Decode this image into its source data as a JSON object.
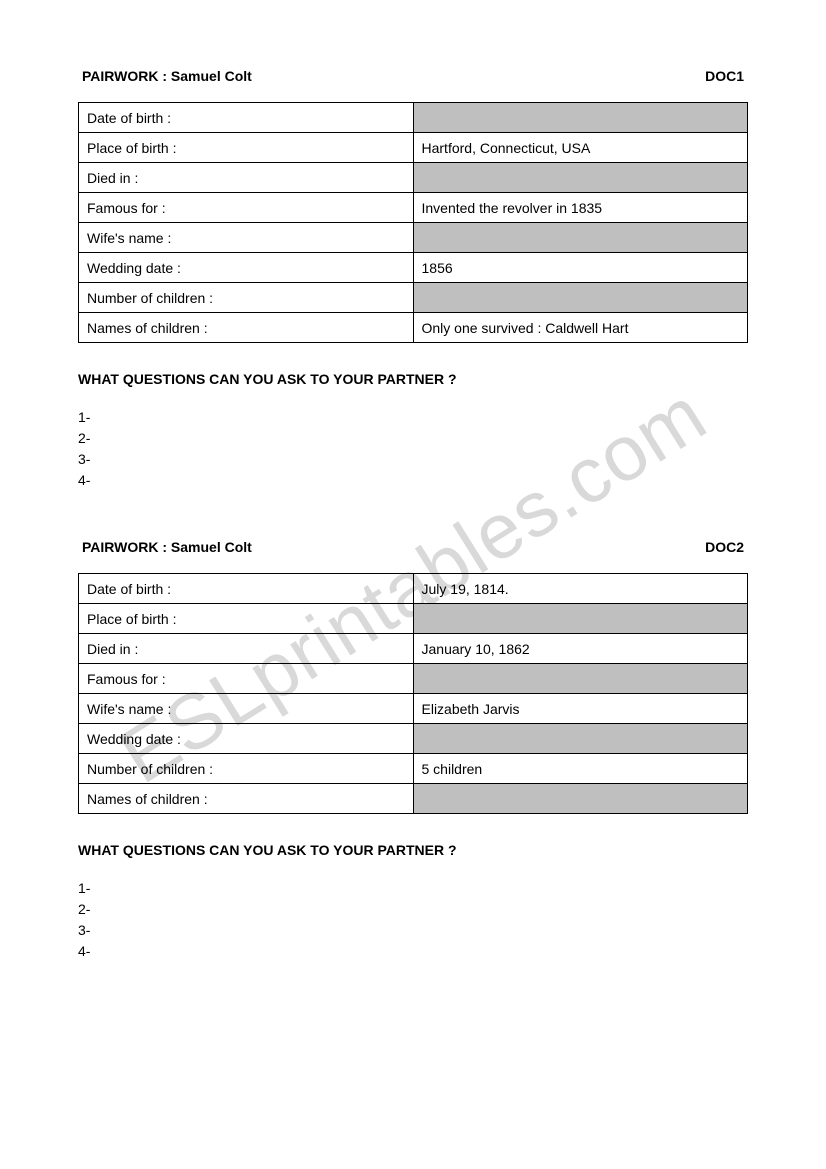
{
  "watermark": "ESLprintables.com",
  "doc1": {
    "header_left": "PAIRWORK : Samuel Colt",
    "header_right": "DOC1",
    "rows": [
      {
        "label": "Date of birth :",
        "value": "",
        "shaded": true
      },
      {
        "label": "Place of birth :",
        "value": "Hartford, Connecticut, USA",
        "shaded": false
      },
      {
        "label": "Died in :",
        "value": "",
        "shaded": true
      },
      {
        "label": "Famous for :",
        "value": "Invented the revolver in 1835",
        "shaded": false
      },
      {
        "label": "Wife's name :",
        "value": "",
        "shaded": true
      },
      {
        "label": "Wedding date :",
        "value": "1856",
        "shaded": false
      },
      {
        "label": "Number of children :",
        "value": "",
        "shaded": true
      },
      {
        "label": "Names of children :",
        "value": "Only one survived : Caldwell Hart",
        "shaded": false
      }
    ],
    "questions_title": "WHAT QUESTIONS CAN YOU ASK TO YOUR PARTNER ?",
    "question_numbers": [
      "1-",
      "2-",
      "3-",
      "4-"
    ]
  },
  "doc2": {
    "header_left": "PAIRWORK : Samuel Colt",
    "header_right": "DOC2",
    "rows": [
      {
        "label": "Date of birth :",
        "value": "July 19, 1814.",
        "shaded": false
      },
      {
        "label": "Place of birth :",
        "value": "",
        "shaded": true
      },
      {
        "label": "Died in :",
        "value": "January 10, 1862",
        "shaded": false
      },
      {
        "label": "Famous for :",
        "value": "",
        "shaded": true
      },
      {
        "label": "Wife's name :",
        "value": "Elizabeth Jarvis",
        "shaded": false
      },
      {
        "label": "Wedding date :",
        "value": "",
        "shaded": true
      },
      {
        "label": "Number of children :",
        "value": "5 children",
        "shaded": false
      },
      {
        "label": "Names of children :",
        "value": "",
        "shaded": true
      }
    ],
    "questions_title": "WHAT QUESTIONS CAN YOU ASK TO YOUR PARTNER ?",
    "question_numbers": [
      "1-",
      "2-",
      "3-",
      "4-"
    ]
  }
}
